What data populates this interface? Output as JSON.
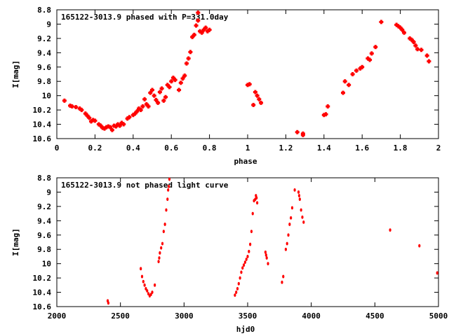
{
  "chart_data": [
    {
      "type": "scatter",
      "title": "165122-3013.9 phased with P=331.0day",
      "xlabel": "phase",
      "ylabel": "I[mag]",
      "xlim": [
        0,
        2
      ],
      "ylim": [
        10.6,
        8.8
      ],
      "y_inverted": true,
      "xticks": [
        "0",
        "0.2",
        "0.4",
        "0.6",
        "0.8",
        "1",
        "1.2",
        "1.4",
        "1.6",
        "1.8",
        "2"
      ],
      "xtick_values": [
        0,
        0.2,
        0.4,
        0.6,
        0.8,
        1.0,
        1.2,
        1.4,
        1.6,
        1.8,
        2.0
      ],
      "yticks": [
        "8.8",
        "9",
        "9.2",
        "9.4",
        "9.6",
        "9.8",
        "10",
        "10.2",
        "10.4",
        "10.6"
      ],
      "ytick_values": [
        8.8,
        9.0,
        9.2,
        9.4,
        9.6,
        9.8,
        10.0,
        10.2,
        10.4,
        10.6
      ],
      "marker": "plus",
      "color": "#ff0000",
      "points": [
        [
          0.04,
          10.07
        ],
        [
          0.07,
          10.14
        ],
        [
          0.08,
          10.15
        ],
        [
          0.1,
          10.16
        ],
        [
          0.12,
          10.18
        ],
        [
          0.13,
          10.2
        ],
        [
          0.15,
          10.25
        ],
        [
          0.16,
          10.28
        ],
        [
          0.17,
          10.31
        ],
        [
          0.18,
          10.36
        ],
        [
          0.19,
          10.34
        ],
        [
          0.2,
          10.35
        ],
        [
          0.22,
          10.4
        ],
        [
          0.23,
          10.42
        ],
        [
          0.24,
          10.45
        ],
        [
          0.25,
          10.46
        ],
        [
          0.26,
          10.44
        ],
        [
          0.27,
          10.43
        ],
        [
          0.28,
          10.44
        ],
        [
          0.29,
          10.48
        ],
        [
          0.3,
          10.42
        ],
        [
          0.31,
          10.43
        ],
        [
          0.32,
          10.4
        ],
        [
          0.33,
          10.42
        ],
        [
          0.34,
          10.38
        ],
        [
          0.35,
          10.4
        ],
        [
          0.37,
          10.32
        ],
        [
          0.38,
          10.3
        ],
        [
          0.4,
          10.27
        ],
        [
          0.41,
          10.25
        ],
        [
          0.42,
          10.22
        ],
        [
          0.43,
          10.18
        ],
        [
          0.44,
          10.2
        ],
        [
          0.45,
          10.15
        ],
        [
          0.46,
          10.05
        ],
        [
          0.47,
          10.12
        ],
        [
          0.48,
          10.15
        ],
        [
          0.49,
          9.96
        ],
        [
          0.5,
          9.92
        ],
        [
          0.51,
          10.0
        ],
        [
          0.52,
          10.06
        ],
        [
          0.53,
          10.1
        ],
        [
          0.54,
          9.95
        ],
        [
          0.55,
          9.9
        ],
        [
          0.56,
          10.07
        ],
        [
          0.57,
          10.02
        ],
        [
          0.58,
          9.85
        ],
        [
          0.59,
          9.88
        ],
        [
          0.6,
          9.8
        ],
        [
          0.61,
          9.75
        ],
        [
          0.62,
          9.78
        ],
        [
          0.64,
          9.92
        ],
        [
          0.65,
          9.82
        ],
        [
          0.66,
          9.76
        ],
        [
          0.67,
          9.72
        ],
        [
          0.68,
          9.55
        ],
        [
          0.69,
          9.48
        ],
        [
          0.7,
          9.39
        ],
        [
          0.71,
          9.18
        ],
        [
          0.72,
          9.15
        ],
        [
          0.73,
          9.02
        ],
        [
          0.74,
          8.95
        ],
        [
          0.74,
          8.84
        ],
        [
          0.75,
          9.1
        ],
        [
          0.76,
          9.12
        ],
        [
          0.77,
          9.08
        ],
        [
          0.78,
          9.05
        ],
        [
          0.79,
          9.1
        ],
        [
          0.8,
          9.08
        ],
        [
          1.0,
          9.85
        ],
        [
          1.01,
          9.84
        ],
        [
          1.03,
          10.13
        ],
        [
          1.04,
          9.95
        ],
        [
          1.05,
          10.0
        ],
        [
          1.06,
          10.05
        ],
        [
          1.07,
          10.1
        ],
        [
          1.26,
          10.51
        ],
        [
          1.29,
          10.53
        ],
        [
          1.29,
          10.55
        ],
        [
          1.4,
          10.27
        ],
        [
          1.41,
          10.26
        ],
        [
          1.42,
          10.15
        ],
        [
          1.5,
          9.96
        ],
        [
          1.51,
          9.8
        ],
        [
          1.53,
          9.85
        ],
        [
          1.55,
          9.7
        ],
        [
          1.57,
          9.65
        ],
        [
          1.59,
          9.62
        ],
        [
          1.6,
          9.6
        ],
        [
          1.63,
          9.48
        ],
        [
          1.64,
          9.5
        ],
        [
          1.65,
          9.41
        ],
        [
          1.67,
          9.32
        ],
        [
          1.7,
          8.97
        ],
        [
          1.78,
          9.01
        ],
        [
          1.79,
          9.03
        ],
        [
          1.8,
          9.05
        ],
        [
          1.81,
          9.08
        ],
        [
          1.82,
          9.12
        ],
        [
          1.85,
          9.2
        ],
        [
          1.86,
          9.22
        ],
        [
          1.87,
          9.25
        ],
        [
          1.88,
          9.3
        ],
        [
          1.89,
          9.35
        ],
        [
          1.91,
          9.36
        ],
        [
          1.94,
          9.44
        ],
        [
          1.95,
          9.52
        ]
      ]
    },
    {
      "type": "scatter",
      "title": "165122-3013.9 not phased light curve",
      "xlabel": "hjd0",
      "ylabel": "I[mag]",
      "xlim": [
        2000,
        5000
      ],
      "ylim": [
        10.6,
        8.8
      ],
      "y_inverted": true,
      "xticks": [
        "2000",
        "2500",
        "3000",
        "3500",
        "4000",
        "4500",
        "5000"
      ],
      "xtick_values": [
        2000,
        2500,
        3000,
        3500,
        4000,
        4500,
        5000
      ],
      "yticks": [
        "8.8",
        "9",
        "9.2",
        "9.4",
        "9.6",
        "9.8",
        "10",
        "10.2",
        "10.4",
        "10.6"
      ],
      "ytick_values": [
        8.8,
        9.0,
        9.2,
        9.4,
        9.6,
        9.8,
        10.0,
        10.2,
        10.4,
        10.6
      ],
      "marker": "dot",
      "color": "#ff0000",
      "points": [
        [
          2400,
          10.52
        ],
        [
          2405,
          10.55
        ],
        [
          2660,
          10.07
        ],
        [
          2670,
          10.18
        ],
        [
          2680,
          10.25
        ],
        [
          2690,
          10.3
        ],
        [
          2700,
          10.35
        ],
        [
          2710,
          10.38
        ],
        [
          2720,
          10.42
        ],
        [
          2730,
          10.45
        ],
        [
          2740,
          10.43
        ],
        [
          2750,
          10.4
        ],
        [
          2770,
          10.3
        ],
        [
          2800,
          9.97
        ],
        [
          2805,
          9.92
        ],
        [
          2810,
          9.85
        ],
        [
          2820,
          9.78
        ],
        [
          2830,
          9.72
        ],
        [
          2840,
          9.55
        ],
        [
          2850,
          9.45
        ],
        [
          2860,
          9.25
        ],
        [
          2870,
          9.1
        ],
        [
          2875,
          8.97
        ],
        [
          2880,
          8.92
        ],
        [
          2885,
          8.82
        ],
        [
          3400,
          10.44
        ],
        [
          3410,
          10.4
        ],
        [
          3420,
          10.35
        ],
        [
          3430,
          10.28
        ],
        [
          3440,
          10.2
        ],
        [
          3450,
          10.12
        ],
        [
          3460,
          10.06
        ],
        [
          3470,
          10.02
        ],
        [
          3480,
          9.98
        ],
        [
          3490,
          9.94
        ],
        [
          3500,
          9.9
        ],
        [
          3510,
          9.83
        ],
        [
          3520,
          9.73
        ],
        [
          3530,
          9.55
        ],
        [
          3540,
          9.3
        ],
        [
          3550,
          9.12
        ],
        [
          3560,
          9.1
        ],
        [
          3565,
          9.05
        ],
        [
          3570,
          9.08
        ],
        [
          3575,
          9.15
        ],
        [
          3640,
          9.84
        ],
        [
          3645,
          9.88
        ],
        [
          3650,
          9.92
        ],
        [
          3660,
          10.0
        ],
        [
          3770,
          10.26
        ],
        [
          3780,
          10.18
        ],
        [
          3800,
          9.8
        ],
        [
          3810,
          9.72
        ],
        [
          3820,
          9.6
        ],
        [
          3830,
          9.45
        ],
        [
          3840,
          9.36
        ],
        [
          3850,
          9.22
        ],
        [
          3870,
          8.97
        ],
        [
          3900,
          9.0
        ],
        [
          3905,
          9.05
        ],
        [
          3910,
          9.1
        ],
        [
          3920,
          9.25
        ],
        [
          3930,
          9.35
        ],
        [
          3940,
          9.42
        ],
        [
          4620,
          9.53
        ],
        [
          4850,
          9.75
        ],
        [
          4990,
          10.13
        ]
      ]
    }
  ]
}
